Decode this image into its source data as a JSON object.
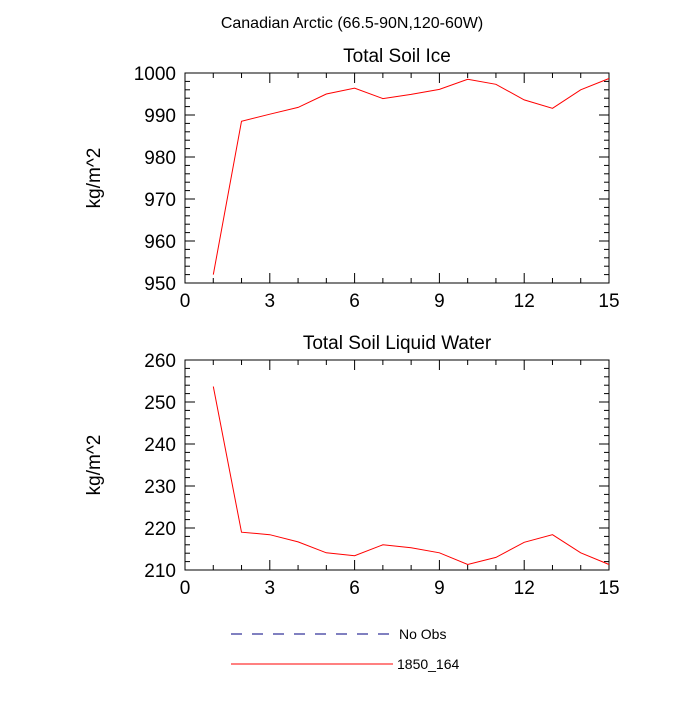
{
  "figure_title": "Canadian Arctic (66.5-90N,120-60W)",
  "legend": {
    "entries": [
      {
        "label": "No Obs",
        "style": "dashed",
        "color": "#000080"
      },
      {
        "label": "1850_164",
        "style": "solid",
        "color": "#ff0000"
      }
    ]
  },
  "chart_data": [
    {
      "type": "line",
      "title": "Total Soil Ice",
      "xlabel": "",
      "ylabel": "kg/m^2",
      "xlim": [
        0,
        15
      ],
      "ylim": [
        950,
        1000
      ],
      "xticks": [
        0,
        3,
        6,
        9,
        12,
        15
      ],
      "yticks": [
        950,
        960,
        970,
        980,
        990,
        1000
      ],
      "grid": false,
      "series": [
        {
          "color": "#ff0000",
          "x": [
            1,
            2,
            3,
            4,
            5,
            6,
            7,
            8,
            9,
            10,
            11,
            12,
            13,
            14,
            15
          ],
          "values": [
            952,
            988.5,
            990.2,
            991.8,
            995,
            996.4,
            993.9,
            994.9,
            996.1,
            998.5,
            997.3,
            993.6,
            991.6,
            996,
            998.7
          ]
        }
      ]
    },
    {
      "type": "line",
      "title": "Total Soil Liquid Water",
      "xlabel": "",
      "ylabel": "kg/m^2",
      "xlim": [
        0,
        15
      ],
      "ylim": [
        210,
        260
      ],
      "xticks": [
        0,
        3,
        6,
        9,
        12,
        15
      ],
      "yticks": [
        210,
        220,
        230,
        240,
        250,
        260
      ],
      "grid": false,
      "series": [
        {
          "color": "#ff0000",
          "x": [
            1,
            2,
            3,
            4,
            5,
            6,
            7,
            8,
            9,
            10,
            11,
            12,
            13,
            14,
            15
          ],
          "values": [
            253.7,
            219,
            218.4,
            216.7,
            214.1,
            213.4,
            216,
            215.3,
            214.1,
            211.3,
            213,
            216.6,
            218.4,
            214.1,
            211.3
          ]
        }
      ]
    }
  ]
}
